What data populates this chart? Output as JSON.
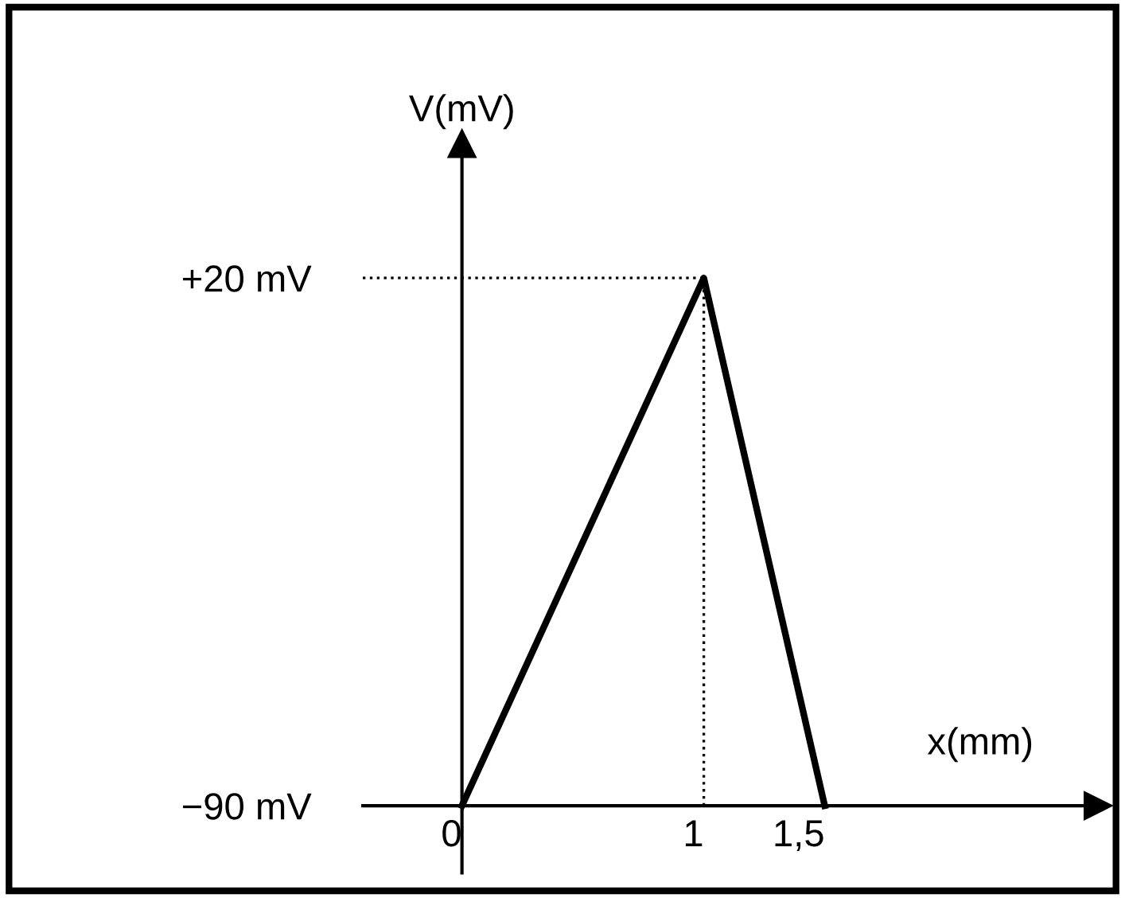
{
  "chart_data": {
    "type": "line",
    "xlabel": "x(mm)",
    "ylabel": "V(mV)",
    "x": [
      0,
      1,
      1.5
    ],
    "series": [
      {
        "color": "#000000",
        "values": [
          -90,
          20,
          -90
        ]
      }
    ],
    "xlim": [
      -0.41,
      2.63
    ],
    "ylim": [
      -104,
      48
    ],
    "xticks": [
      0,
      1,
      {
        "value": 1.5,
        "label": "1,5"
      }
    ],
    "yticks": [
      {
        "value": -90,
        "label": "−90 mV"
      },
      {
        "value": 20,
        "label": "+20 mV"
      }
    ],
    "ref_lines": [
      {
        "axis": "y",
        "value": 20,
        "color": "#000000",
        "line_style": "dotted"
      },
      {
        "axis": "x",
        "value": 1,
        "color": "#000000",
        "line_style": "dotted"
      }
    ],
    "grid": false,
    "legend": false,
    "marker": "none",
    "line_style": "solid"
  }
}
